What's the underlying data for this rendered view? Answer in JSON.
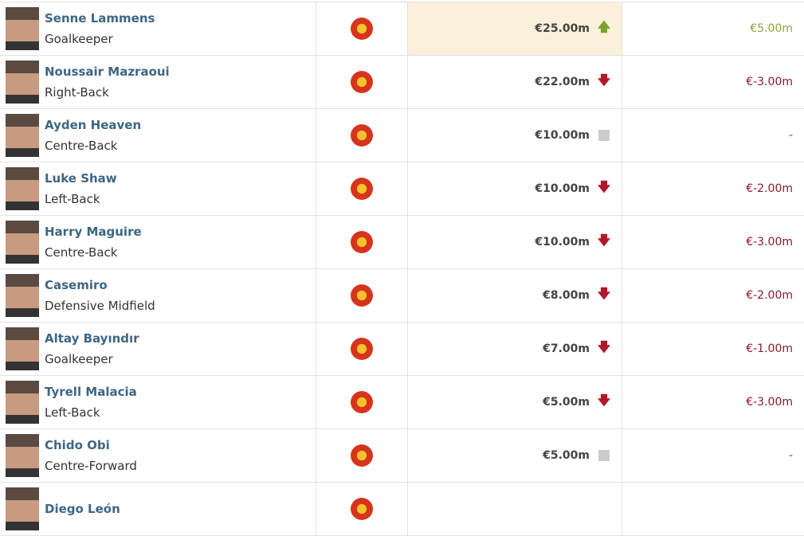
{
  "colors": {
    "positive": "#8aa83a",
    "negative": "#8b1a2a",
    "neutral": "#555555",
    "highlight": "#fbf0d9"
  },
  "players": [
    {
      "name": "Senne Lammens",
      "position": "Goalkeeper",
      "club_icon": "manchester-united-crest",
      "market_value": "€25.00m",
      "trend": "up",
      "change": "€5.00m",
      "highlight": true
    },
    {
      "name": "Noussair Mazraoui",
      "position": "Right-Back",
      "club_icon": "manchester-united-crest",
      "market_value": "€22.00m",
      "trend": "down",
      "change": "€-3.00m"
    },
    {
      "name": "Ayden Heaven",
      "position": "Centre-Back",
      "club_icon": "manchester-united-crest",
      "market_value": "€10.00m",
      "trend": "none",
      "change": "-"
    },
    {
      "name": "Luke Shaw",
      "position": "Left-Back",
      "club_icon": "manchester-united-crest",
      "market_value": "€10.00m",
      "trend": "down",
      "change": "€-2.00m"
    },
    {
      "name": "Harry Maguire",
      "position": "Centre-Back",
      "club_icon": "manchester-united-crest",
      "market_value": "€10.00m",
      "trend": "down",
      "change": "€-3.00m"
    },
    {
      "name": "Casemiro",
      "position": "Defensive Midfield",
      "club_icon": "manchester-united-crest",
      "market_value": "€8.00m",
      "trend": "down",
      "change": "€-2.00m"
    },
    {
      "name": "Altay Bayındır",
      "position": "Goalkeeper",
      "club_icon": "manchester-united-crest",
      "market_value": "€7.00m",
      "trend": "down",
      "change": "€-1.00m"
    },
    {
      "name": "Tyrell Malacia",
      "position": "Left-Back",
      "club_icon": "manchester-united-crest",
      "market_value": "€5.00m",
      "trend": "down",
      "change": "€-3.00m"
    },
    {
      "name": "Chido Obi",
      "position": "Centre-Forward",
      "club_icon": "manchester-united-crest",
      "market_value": "€5.00m",
      "trend": "none",
      "change": "-"
    },
    {
      "name": "Diego León",
      "club_icon": "manchester-united-crest"
    }
  ]
}
